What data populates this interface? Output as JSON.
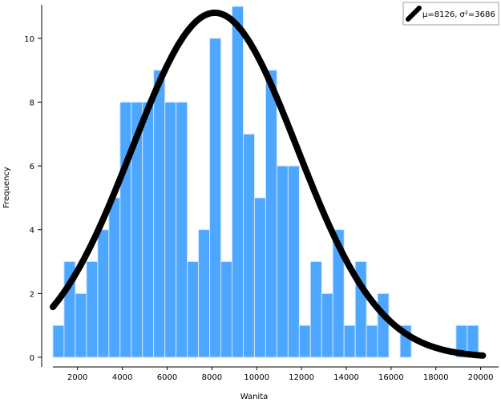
{
  "chart_data": {
    "type": "bar",
    "subtype": "histogram",
    "xlabel": "Wanita",
    "ylabel": "Frequency",
    "xlim": [
      400,
      20800
    ],
    "ylim": [
      0,
      11
    ],
    "x_ticks": [
      "2000",
      "4000",
      "6000",
      "8000",
      "10000",
      "12000",
      "14000",
      "16000",
      "18000",
      "20000"
    ],
    "y_ticks": [
      "0",
      "2",
      "4",
      "6",
      "8",
      "10"
    ],
    "bin_width": 500,
    "bins": [
      {
        "x0": 900,
        "x1": 1400,
        "count": 1
      },
      {
        "x0": 1400,
        "x1": 1900,
        "count": 3
      },
      {
        "x0": 1900,
        "x1": 2400,
        "count": 2
      },
      {
        "x0": 2400,
        "x1": 2900,
        "count": 3
      },
      {
        "x0": 2900,
        "x1": 3400,
        "count": 4
      },
      {
        "x0": 3400,
        "x1": 3900,
        "count": 5
      },
      {
        "x0": 3900,
        "x1": 4400,
        "count": 8
      },
      {
        "x0": 4400,
        "x1": 4900,
        "count": 8
      },
      {
        "x0": 4900,
        "x1": 5400,
        "count": 8
      },
      {
        "x0": 5400,
        "x1": 5900,
        "count": 9
      },
      {
        "x0": 5900,
        "x1": 6400,
        "count": 8
      },
      {
        "x0": 6400,
        "x1": 6900,
        "count": 8
      },
      {
        "x0": 6900,
        "x1": 7400,
        "count": 3
      },
      {
        "x0": 7400,
        "x1": 7900,
        "count": 4
      },
      {
        "x0": 7900,
        "x1": 8400,
        "count": 10
      },
      {
        "x0": 8400,
        "x1": 8900,
        "count": 3
      },
      {
        "x0": 8900,
        "x1": 9400,
        "count": 11
      },
      {
        "x0": 9400,
        "x1": 9900,
        "count": 7
      },
      {
        "x0": 9900,
        "x1": 10400,
        "count": 5
      },
      {
        "x0": 10400,
        "x1": 10900,
        "count": 9
      },
      {
        "x0": 10900,
        "x1": 11400,
        "count": 6
      },
      {
        "x0": 11400,
        "x1": 11900,
        "count": 6
      },
      {
        "x0": 11900,
        "x1": 12400,
        "count": 1
      },
      {
        "x0": 12400,
        "x1": 12900,
        "count": 3
      },
      {
        "x0": 12900,
        "x1": 13400,
        "count": 2
      },
      {
        "x0": 13400,
        "x1": 13900,
        "count": 4
      },
      {
        "x0": 13900,
        "x1": 14400,
        "count": 1
      },
      {
        "x0": 14400,
        "x1": 14900,
        "count": 3
      },
      {
        "x0": 14900,
        "x1": 15400,
        "count": 1
      },
      {
        "x0": 15400,
        "x1": 15900,
        "count": 2
      },
      {
        "x0": 15900,
        "x1": 16400,
        "count": 0
      },
      {
        "x0": 16400,
        "x1": 16900,
        "count": 1
      },
      {
        "x0": 16900,
        "x1": 17400,
        "count": 0
      },
      {
        "x0": 17400,
        "x1": 17900,
        "count": 0
      },
      {
        "x0": 17900,
        "x1": 18400,
        "count": 0
      },
      {
        "x0": 18400,
        "x1": 18900,
        "count": 0
      },
      {
        "x0": 18900,
        "x1": 19400,
        "count": 1
      },
      {
        "x0": 19400,
        "x1": 19900,
        "count": 1
      }
    ],
    "curve": {
      "label": "μ=8126, σ²=3686",
      "mean": 8126,
      "sd": 3686,
      "peak": 10.8,
      "x_range": [
        900,
        20100
      ]
    },
    "legend_position": "top-right",
    "grid": false,
    "colors": {
      "bar_fill": "#4da6ff",
      "bar_edge": "#cfe6ff",
      "curve": "#000000",
      "axis": "#000000",
      "background": "#ffffff"
    }
  }
}
